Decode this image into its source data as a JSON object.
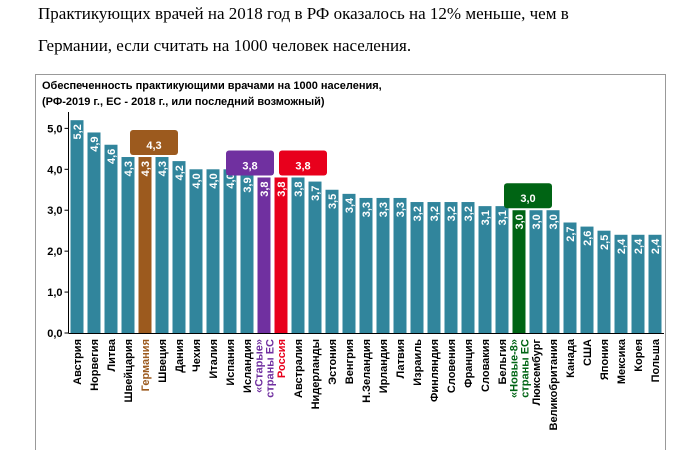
{
  "intro": [
    "Практикующих врачей на 2018 год в РФ оказалось на 12% меньше, чем в",
    "Германии, если считать на 1000 человек населения."
  ],
  "chart_data": {
    "type": "bar",
    "title": "Обеспеченность практикующими врачами на 1000 населения,",
    "subtitle": "(РФ-2019 г., ЕС - 2018 г., или последний возможный)",
    "categories": [
      [
        "Австрия"
      ],
      [
        "Норвегия"
      ],
      [
        "Литва"
      ],
      [
        "Швейцария"
      ],
      [
        "Германия"
      ],
      [
        "Швеция"
      ],
      [
        "Дания"
      ],
      [
        "Чехия"
      ],
      [
        "Италия"
      ],
      [
        "Испания"
      ],
      [
        "Исландия"
      ],
      [
        "«Старые»",
        "страны ЕС"
      ],
      [
        "Россия"
      ],
      [
        "Австралия"
      ],
      [
        "Нидерланды"
      ],
      [
        "Эстония"
      ],
      [
        "Венгрия"
      ],
      [
        "Н.Зеландия"
      ],
      [
        "Ирландия"
      ],
      [
        "Латвия"
      ],
      [
        "Израиль"
      ],
      [
        "Финляндия"
      ],
      [
        "Словения"
      ],
      [
        "Франция"
      ],
      [
        "Словакия"
      ],
      [
        "Бельгия"
      ],
      [
        "«Новые-8»",
        "страны ЕС"
      ],
      [
        "Люксембург"
      ],
      [
        "Великобритания"
      ],
      [
        "Канада"
      ],
      [
        "США"
      ],
      [
        "Япония"
      ],
      [
        "Мексика"
      ],
      [
        "Корея"
      ],
      [
        "Польша"
      ]
    ],
    "values": [
      5.2,
      4.9,
      4.6,
      4.3,
      4.3,
      4.3,
      4.2,
      4.0,
      4.0,
      4.0,
      3.9,
      3.8,
      3.8,
      3.8,
      3.7,
      3.5,
      3.4,
      3.3,
      3.3,
      3.3,
      3.2,
      3.2,
      3.2,
      3.2,
      3.1,
      3.1,
      3.0,
      3.0,
      3.0,
      2.7,
      2.6,
      2.5,
      2.4,
      2.4,
      2.4
    ],
    "value_labels": [
      "5,2",
      "4,9",
      "4,6",
      "4,3",
      "4,3",
      "4,3",
      "4,2",
      "4,0",
      "4,0",
      "4,0",
      "3,9",
      "3,8",
      "3,8",
      "3,8",
      "3,7",
      "3,5",
      "3,4",
      "3,3",
      "3,3",
      "3,3",
      "3,2",
      "3,2",
      "3,2",
      "3,2",
      "3,1",
      "3,1",
      "3,0",
      "3,0",
      "3,0",
      "2,7",
      "2,6",
      "2,5",
      "2,4",
      "2,4",
      "2,4"
    ],
    "color": "#31859c",
    "colors": [
      "#31859c",
      "#31859c",
      "#31859c",
      "#31859c",
      "#9c5a1e",
      "#31859c",
      "#31859c",
      "#31859c",
      "#31859c",
      "#31859c",
      "#31859c",
      "#7030a0",
      "#e8001c",
      "#31859c",
      "#31859c",
      "#31859c",
      "#31859c",
      "#31859c",
      "#31859c",
      "#31859c",
      "#31859c",
      "#31859c",
      "#31859c",
      "#31859c",
      "#31859c",
      "#31859c",
      "#006414",
      "#31859c",
      "#31859c",
      "#31859c",
      "#31859c",
      "#31859c",
      "#31859c",
      "#31859c",
      "#31859c"
    ],
    "ylim": [
      0,
      5.4
    ],
    "yticks": [
      {
        "value": 0,
        "label": "0,0"
      },
      {
        "value": 1,
        "label": "1,0"
      },
      {
        "value": 2,
        "label": "2,0"
      },
      {
        "value": 3,
        "label": "3,0"
      },
      {
        "value": 4,
        "label": "4,0"
      },
      {
        "value": 5,
        "label": "5,0"
      }
    ],
    "grid": false
  }
}
